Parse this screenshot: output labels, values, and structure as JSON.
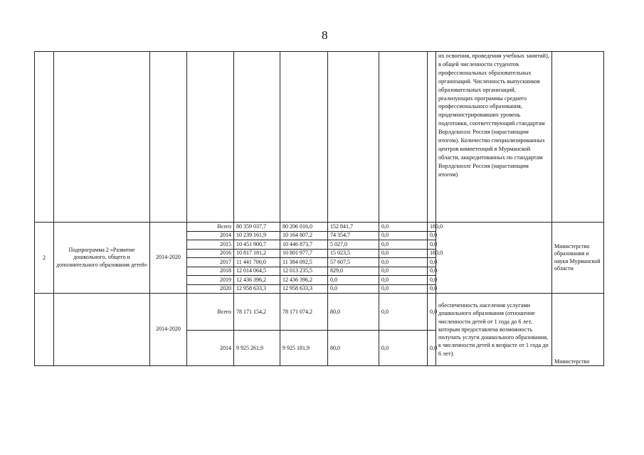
{
  "page_number": "8",
  "top_row": {
    "indicator": "их освоения, проведении учебных занятий), в общей численности студентов профессиональных образовательных организаций. Численность выпускников образовательных организаций, реализующих программы среднего профессионального образования, продемонстрировавших уровень подготовки, соответствующий стандартам Ворлдскиллс Россия (нарастающим итогом). Количество специализированных центров компетенций в Мурманской области, аккредитованных по стандартам Ворлдскиллс Россия (нарастающим итогом)"
  },
  "subprogram2": {
    "number": "2",
    "name": "Подпрограмма 2 «Развитие дошкольного, общего и дополнительного образования детей»",
    "period": "2014-2020",
    "ministry": "Министерство образования и науки Мурманской области",
    "rows": [
      {
        "year": "Всего",
        "v1": "80 359 037,7",
        "v2": "80 206 016,0",
        "v3": "152 841,7",
        "v4": "0,0",
        "v5": "180,0"
      },
      {
        "year": "2014",
        "v1": "10 239 161,9",
        "v2": "10 164 807,2",
        "v3": "74 354,7",
        "v4": "0,0",
        "v5": "0,0"
      },
      {
        "year": "2015",
        "v1": "10 451 900,7",
        "v2": "10 446 873,7",
        "v3": "5 027,0",
        "v4": "0,0",
        "v5": "0,0"
      },
      {
        "year": "2016",
        "v1": "10 817 181,2",
        "v2": "10 801 977,7",
        "v3": "15 023,5",
        "v4": "0,0",
        "v5": "180,0"
      },
      {
        "year": "2017",
        "v1": "11 441 700,0",
        "v2": "11 384 092,5",
        "v3": "57 607,5",
        "v4": "0,0",
        "v5": "0,0"
      },
      {
        "year": "2018",
        "v1": "12 014 064,5",
        "v2": "12 013 235,5",
        "v3": "829,0",
        "v4": "0,0",
        "v5": "0,0"
      },
      {
        "year": "2019",
        "v1": "12 436 396,2",
        "v2": "12 436 396,2",
        "v3": "0,0",
        "v4": "0,0",
        "v5": "0,0"
      },
      {
        "year": "2020",
        "v1": "12 958 633,3",
        "v2": "12 958 633,3",
        "v3": "0,0",
        "v4": "0,0",
        "v5": "0,0"
      }
    ]
  },
  "next_section": {
    "period": "2014-2020",
    "indicator": "обеспеченность населения услугами дошкольного образования (отношение численности детей от 1 года до 6 лет, которым предоставлена возможность получать услуги дошкольного образования, к численности детей в возрасте от 1 года до 6 лет).",
    "ministry": "Министерство",
    "rows": [
      {
        "year": "Всего",
        "v1": "78 171 154,2",
        "v2": "78 171 074,2",
        "v3": "80,0",
        "v4": "0,0",
        "v5": "0,0"
      },
      {
        "year": "2014",
        "v1": "9 925 261,9",
        "v2": "9 925 181,9",
        "v3": "80,0",
        "v4": "0,0",
        "v5": "0,0"
      }
    ]
  }
}
